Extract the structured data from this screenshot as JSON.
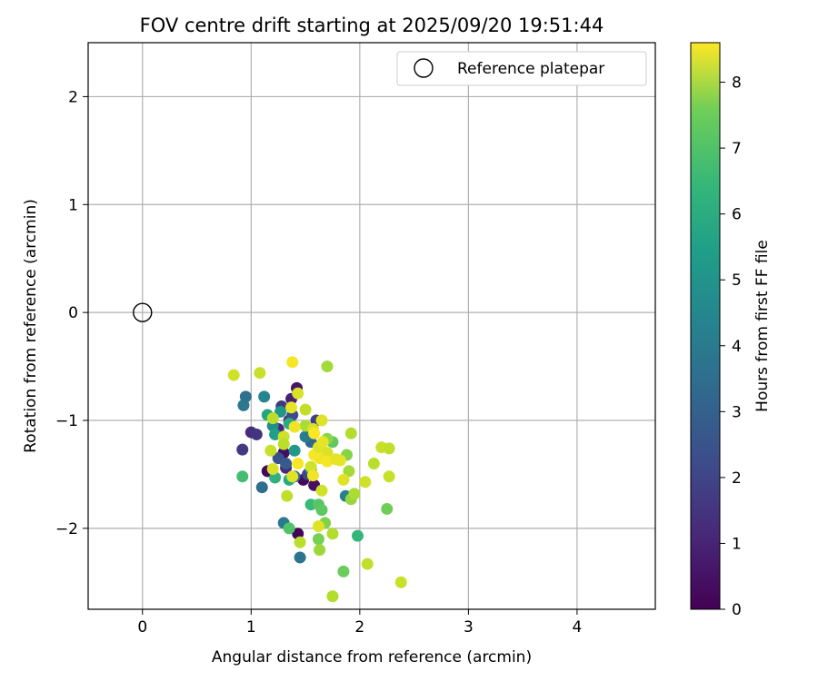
{
  "chart_data": {
    "type": "scatter",
    "title": "FOV centre drift starting at 2025/09/20 19:51:44",
    "xlabel": "Angular distance from reference (arcmin)",
    "ylabel": "Rotation from reference (arcmin)",
    "xlim": [
      -0.5,
      4.72
    ],
    "ylim": [
      -2.75,
      2.5
    ],
    "xticks": [
      0,
      1,
      2,
      3,
      4
    ],
    "yticks": [
      -2,
      -1,
      0,
      1,
      2
    ],
    "xtick_labels": [
      "0",
      "1",
      "2",
      "3",
      "4"
    ],
    "ytick_labels": [
      "−2",
      "−1",
      "0",
      "1",
      "2"
    ],
    "grid": true,
    "legend": {
      "location": "top-right",
      "entries": [
        {
          "label": "Reference platepar",
          "marker": "open-circle"
        }
      ]
    },
    "reference_point": {
      "x": 0,
      "y": 0,
      "label": "Reference platepar"
    },
    "colorbar": {
      "label": "Hours from first FF file",
      "colormap": "viridis",
      "range": [
        0,
        8.6
      ],
      "ticks": [
        0,
        1,
        2,
        3,
        4,
        5,
        6,
        7,
        8
      ],
      "tick_labels": [
        "0",
        "1",
        "2",
        "3",
        "4",
        "5",
        "6",
        "7",
        "8"
      ]
    },
    "points": [
      {
        "x": 1.42,
        "y": -0.7,
        "h": 0.5
      },
      {
        "x": 1.3,
        "y": -1.3,
        "h": 0.3
      },
      {
        "x": 1.48,
        "y": -1.55,
        "h": 0.2
      },
      {
        "x": 1.43,
        "y": -2.05,
        "h": 0.1
      },
      {
        "x": 1.15,
        "y": -1.47,
        "h": 0.2
      },
      {
        "x": 1.58,
        "y": -1.6,
        "h": 0.4
      },
      {
        "x": 1.37,
        "y": -0.8,
        "h": 0.8
      },
      {
        "x": 1.32,
        "y": -1.44,
        "h": 1.0
      },
      {
        "x": 1.35,
        "y": -1.0,
        "h": 1.2
      },
      {
        "x": 1.28,
        "y": -0.87,
        "h": 1.4
      },
      {
        "x": 0.92,
        "y": -1.27,
        "h": 1.5
      },
      {
        "x": 1.0,
        "y": -1.11,
        "h": 1.1
      },
      {
        "x": 1.05,
        "y": -1.13,
        "h": 1.3
      },
      {
        "x": 1.25,
        "y": -1.08,
        "h": 0.9
      },
      {
        "x": 1.52,
        "y": -1.5,
        "h": 1.8
      },
      {
        "x": 1.25,
        "y": -1.35,
        "h": 2.2
      },
      {
        "x": 1.38,
        "y": -0.95,
        "h": 2.0
      },
      {
        "x": 1.6,
        "y": -1.0,
        "h": 1.6
      },
      {
        "x": 1.32,
        "y": -1.4,
        "h": 2.5
      },
      {
        "x": 1.55,
        "y": -1.2,
        "h": 2.8
      },
      {
        "x": 0.95,
        "y": -0.78,
        "h": 3.2
      },
      {
        "x": 0.93,
        "y": -0.86,
        "h": 3.4
      },
      {
        "x": 1.1,
        "y": -1.62,
        "h": 3.1
      },
      {
        "x": 1.3,
        "y": -1.95,
        "h": 3.5
      },
      {
        "x": 1.45,
        "y": -2.27,
        "h": 3.3
      },
      {
        "x": 1.12,
        "y": -0.78,
        "h": 3.9
      },
      {
        "x": 1.5,
        "y": -1.15,
        "h": 3.6
      },
      {
        "x": 1.4,
        "y": -1.52,
        "h": 2.9
      },
      {
        "x": 1.55,
        "y": -1.45,
        "h": 4.0
      },
      {
        "x": 1.2,
        "y": -1.05,
        "h": 4.2
      },
      {
        "x": 1.27,
        "y": -0.92,
        "h": 4.5
      },
      {
        "x": 1.22,
        "y": -1.13,
        "h": 4.8
      },
      {
        "x": 1.87,
        "y": -1.7,
        "h": 3.8
      },
      {
        "x": 1.4,
        "y": -1.28,
        "h": 4.6
      },
      {
        "x": 1.15,
        "y": -0.95,
        "h": 5.0
      },
      {
        "x": 1.35,
        "y": -1.03,
        "h": 5.3
      },
      {
        "x": 1.22,
        "y": -1.53,
        "h": 5.5
      },
      {
        "x": 1.35,
        "y": -1.55,
        "h": 5.2
      },
      {
        "x": 1.55,
        "y": -1.78,
        "h": 5.8
      },
      {
        "x": 1.98,
        "y": -2.07,
        "h": 5.7
      },
      {
        "x": 1.35,
        "y": -2.0,
        "h": 6.2
      },
      {
        "x": 1.62,
        "y": -1.78,
        "h": 6.3
      },
      {
        "x": 0.92,
        "y": -1.52,
        "h": 6.0
      },
      {
        "x": 1.65,
        "y": -1.83,
        "h": 6.4
      },
      {
        "x": 1.75,
        "y": -1.2,
        "h": 6.5
      },
      {
        "x": 1.85,
        "y": -2.4,
        "h": 6.6
      },
      {
        "x": 1.62,
        "y": -2.1,
        "h": 6.8
      },
      {
        "x": 2.25,
        "y": -1.82,
        "h": 6.7
      },
      {
        "x": 1.68,
        "y": -1.95,
        "h": 6.9
      },
      {
        "x": 1.7,
        "y": -1.17,
        "h": 7.1
      },
      {
        "x": 1.88,
        "y": -1.32,
        "h": 7.0
      },
      {
        "x": 1.63,
        "y": -2.2,
        "h": 7.3
      },
      {
        "x": 1.92,
        "y": -1.73,
        "h": 7.2
      },
      {
        "x": 1.7,
        "y": -0.5,
        "h": 7.4
      },
      {
        "x": 1.92,
        "y": -1.12,
        "h": 7.6
      },
      {
        "x": 1.5,
        "y": -1.05,
        "h": 7.5
      },
      {
        "x": 1.45,
        "y": -2.13,
        "h": 7.7
      },
      {
        "x": 1.75,
        "y": -2.63,
        "h": 7.6
      },
      {
        "x": 2.07,
        "y": -2.33,
        "h": 7.8
      },
      {
        "x": 2.38,
        "y": -2.5,
        "h": 7.9
      },
      {
        "x": 2.2,
        "y": -1.25,
        "h": 7.9
      },
      {
        "x": 2.27,
        "y": -1.26,
        "h": 7.8
      },
      {
        "x": 2.27,
        "y": -1.52,
        "h": 7.9
      },
      {
        "x": 2.13,
        "y": -1.4,
        "h": 7.7
      },
      {
        "x": 2.05,
        "y": -1.57,
        "h": 8.0
      },
      {
        "x": 1.95,
        "y": -1.68,
        "h": 7.5
      },
      {
        "x": 1.9,
        "y": -1.47,
        "h": 7.4
      },
      {
        "x": 1.85,
        "y": -1.55,
        "h": 8.2
      },
      {
        "x": 1.82,
        "y": -1.37,
        "h": 8.3
      },
      {
        "x": 1.7,
        "y": -1.3,
        "h": 8.1
      },
      {
        "x": 1.63,
        "y": -1.35,
        "h": 8.4
      },
      {
        "x": 1.58,
        "y": -1.32,
        "h": 8.5
      },
      {
        "x": 1.55,
        "y": -1.43,
        "h": 8.0
      },
      {
        "x": 1.62,
        "y": -1.25,
        "h": 8.2
      },
      {
        "x": 1.66,
        "y": -1.2,
        "h": 8.3
      },
      {
        "x": 1.38,
        "y": -0.46,
        "h": 8.5
      },
      {
        "x": 0.84,
        "y": -0.58,
        "h": 8.0
      },
      {
        "x": 1.08,
        "y": -0.56,
        "h": 7.9
      },
      {
        "x": 1.43,
        "y": -0.75,
        "h": 8.1
      },
      {
        "x": 1.5,
        "y": -0.9,
        "h": 7.8
      },
      {
        "x": 1.65,
        "y": -1.0,
        "h": 8.2
      },
      {
        "x": 1.2,
        "y": -0.98,
        "h": 7.7
      },
      {
        "x": 1.37,
        "y": -0.88,
        "h": 8.3
      },
      {
        "x": 1.4,
        "y": -1.06,
        "h": 8.4
      },
      {
        "x": 1.3,
        "y": -1.15,
        "h": 8.0
      },
      {
        "x": 1.18,
        "y": -1.28,
        "h": 7.9
      },
      {
        "x": 1.2,
        "y": -1.45,
        "h": 8.1
      },
      {
        "x": 1.43,
        "y": -1.4,
        "h": 8.5
      },
      {
        "x": 1.38,
        "y": -1.52,
        "h": 8.2
      },
      {
        "x": 1.33,
        "y": -1.7,
        "h": 7.8
      },
      {
        "x": 1.65,
        "y": -1.65,
        "h": 8.0
      },
      {
        "x": 1.57,
        "y": -1.51,
        "h": 8.4
      },
      {
        "x": 1.75,
        "y": -2.05,
        "h": 7.6
      },
      {
        "x": 1.62,
        "y": -1.98,
        "h": 8.2
      },
      {
        "x": 1.7,
        "y": -1.38,
        "h": 8.5
      },
      {
        "x": 1.78,
        "y": -1.36,
        "h": 8.3
      },
      {
        "x": 1.57,
        "y": -1.08,
        "h": 8.1
      },
      {
        "x": 1.3,
        "y": -1.22,
        "h": 7.7
      },
      {
        "x": 1.58,
        "y": -1.12,
        "h": 8.6
      }
    ]
  }
}
